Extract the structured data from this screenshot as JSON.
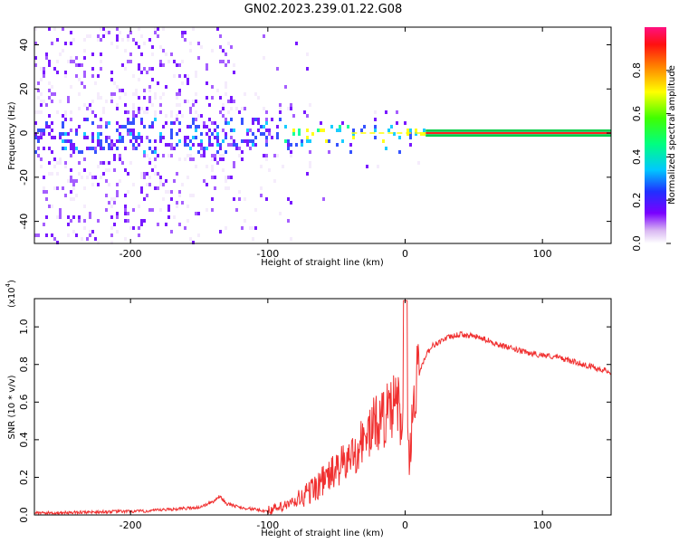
{
  "figure_title": "GN02.2023.239.01.22.G08",
  "chart_data": [
    {
      "type": "heatmap",
      "xlabel": "Height of straight line (km)",
      "ylabel": "Frequency (Hz)",
      "xlim": [
        -270,
        150
      ],
      "ylim": [
        -50,
        48
      ],
      "xticks": [
        -200,
        -100,
        0,
        100
      ],
      "yticks": [
        -40,
        -20,
        0,
        20,
        40
      ],
      "colorbar": {
        "label": "Normalized spectral amplitude",
        "range": [
          0.0,
          1.0
        ],
        "ticks": [
          0.0,
          0.2,
          0.4,
          0.6,
          0.8
        ]
      },
      "ridge": {
        "description_frequency_hz": 0,
        "steady_from_km": 15,
        "steady_to_km": 150,
        "line_colors": [
          "#00a000",
          "#ff2020"
        ]
      }
    },
    {
      "type": "line",
      "xlabel": "Height of straight line (km)",
      "ylabel": "SNR (10 * v/v)",
      "y_scale_label": "(x10",
      "y_scale_exp": "4",
      "y_scale_close": ")",
      "xlim": [
        -270,
        150
      ],
      "ylim": [
        0,
        1.15
      ],
      "xticks": [
        -200,
        -100,
        0,
        100
      ],
      "yticks": [
        0.0,
        0.2,
        0.4,
        0.6,
        0.8,
        1.0
      ],
      "series_color": "#f03030",
      "series": [
        {
          "name": "SNR",
          "x": [
            -270,
            -250,
            -230,
            -210,
            -190,
            -170,
            -150,
            -140,
            -135,
            -130,
            -120,
            -110,
            -100,
            -90,
            -80,
            -70,
            -60,
            -50,
            -40,
            -30,
            -20,
            -10,
            -5,
            -2,
            0,
            3,
            6,
            10,
            15,
            20,
            30,
            40,
            50,
            60,
            70,
            80,
            90,
            100,
            110,
            120,
            130,
            140,
            150
          ],
          "y": [
            0.01,
            0.012,
            0.015,
            0.018,
            0.02,
            0.03,
            0.04,
            0.07,
            0.1,
            0.06,
            0.04,
            0.03,
            0.02,
            0.04,
            0.07,
            0.12,
            0.18,
            0.24,
            0.3,
            0.4,
            0.5,
            0.55,
            0.6,
            0.4,
            0.55,
            0.3,
            0.6,
            0.75,
            0.85,
            0.9,
            0.94,
            0.96,
            0.95,
            0.93,
            0.9,
            0.88,
            0.86,
            0.85,
            0.84,
            0.82,
            0.8,
            0.78,
            0.76
          ]
        }
      ]
    }
  ]
}
